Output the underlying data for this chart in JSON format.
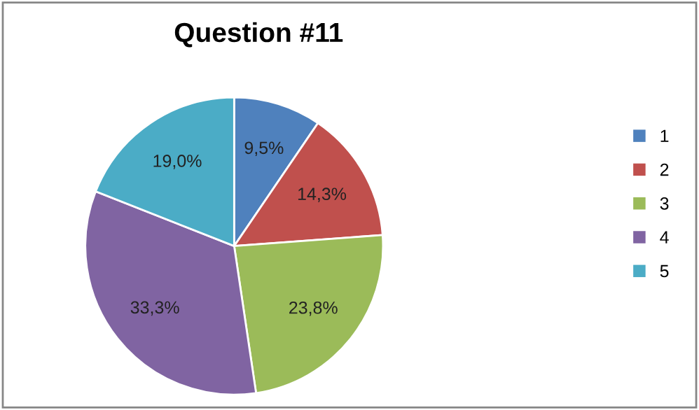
{
  "chart_data": {
    "type": "pie",
    "title": "Question #11",
    "categories": [
      "1",
      "2",
      "3",
      "4",
      "5"
    ],
    "values": [
      9.5,
      14.3,
      23.8,
      33.3,
      19.0
    ],
    "value_labels": [
      "9,5%",
      "14,3%",
      "23,8%",
      "33,3%",
      "19,0%"
    ],
    "colors": [
      "#4f81bd",
      "#c0504d",
      "#9bbb59",
      "#8064a2",
      "#4bacc6"
    ],
    "legend": "right"
  }
}
